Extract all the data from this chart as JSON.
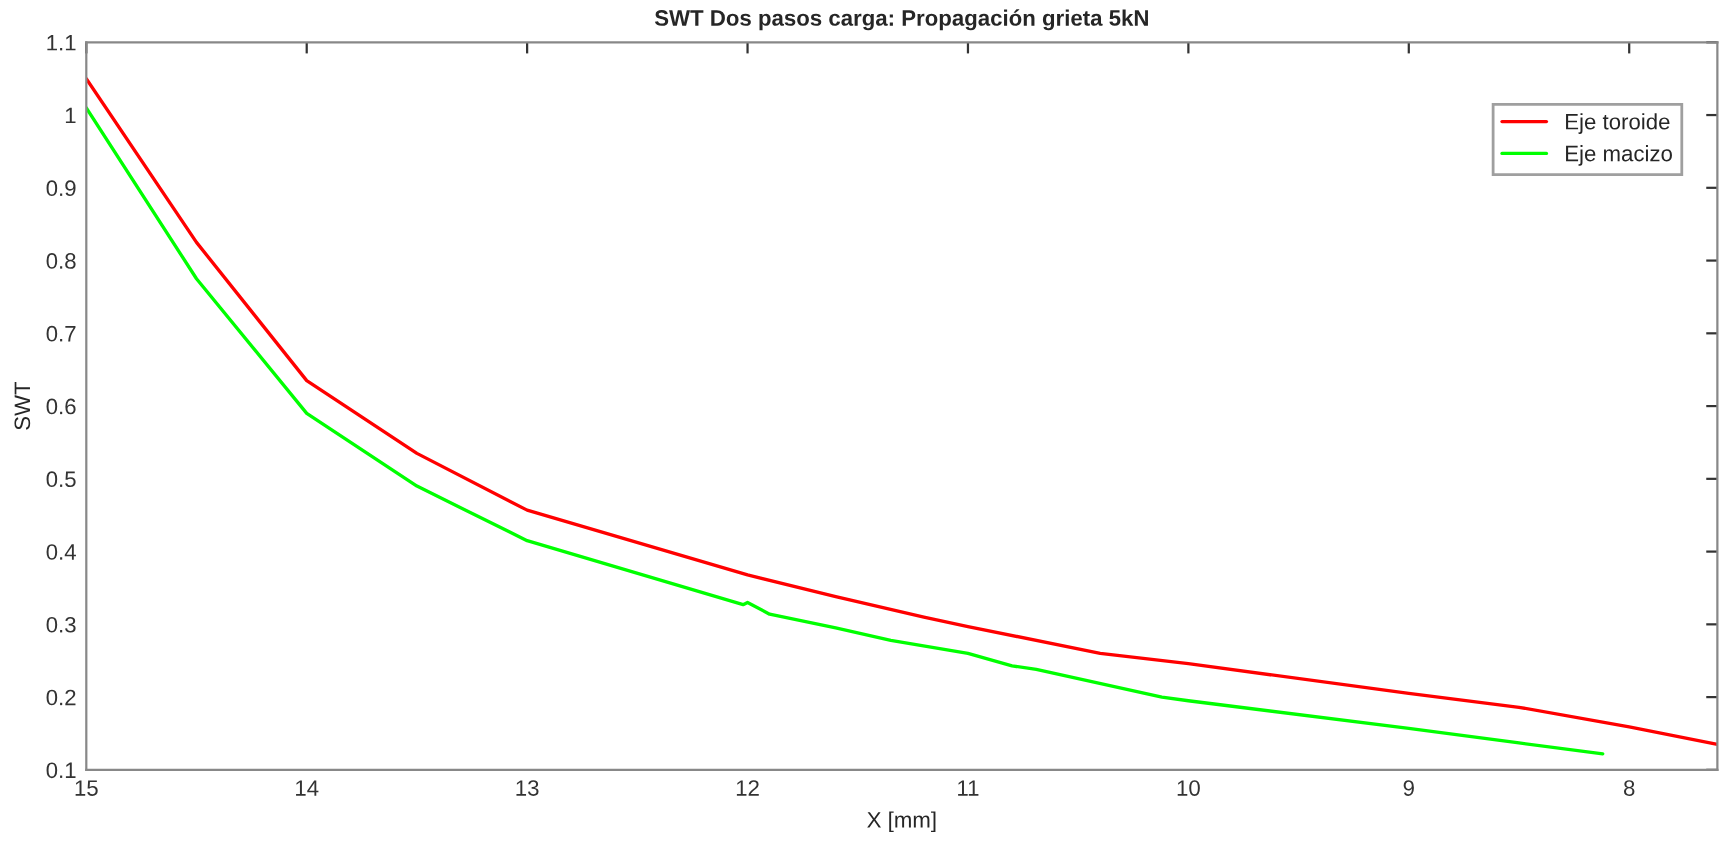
{
  "chart_data": {
    "type": "line",
    "title": "SWT Dos pasos carga: Propagación grieta 5kN",
    "xlabel": "X [mm]",
    "ylabel": "SWT",
    "xlim": [
      15,
      7.6
    ],
    "xticks": [
      15,
      14,
      13,
      12,
      11,
      10,
      9,
      8
    ],
    "ylim": [
      0.1,
      1.1
    ],
    "yticks": [
      0.1,
      0.2,
      0.3,
      0.4,
      0.5,
      0.6,
      0.7,
      0.8,
      0.9,
      1,
      1.1
    ],
    "grid": false,
    "legend": "top right",
    "series": [
      {
        "name": "Eje toroide",
        "color": "#ff0000",
        "x": [
          15,
          14.5,
          14,
          13.5,
          13,
          12,
          11.6,
          11.2,
          11,
          10.4,
          10,
          9,
          8.5,
          8,
          7.6
        ],
        "values": [
          1.05,
          0.825,
          0.635,
          0.535,
          0.457,
          0.368,
          0.338,
          0.31,
          0.297,
          0.26,
          0.246,
          0.205,
          0.186,
          0.159,
          0.135
        ]
      },
      {
        "name": "Eje macizo",
        "color": "#00ff00",
        "x": [
          15,
          14.5,
          14,
          13.5,
          13,
          12.02,
          12,
          11.9,
          11.6,
          11.35,
          11,
          10.8,
          10.69,
          10.12,
          10,
          9,
          8.5,
          8.12
        ],
        "values": [
          1.01,
          0.775,
          0.59,
          0.49,
          0.415,
          0.327,
          0.33,
          0.314,
          0.295,
          0.278,
          0.26,
          0.243,
          0.238,
          0.2,
          0.195,
          0.157,
          0.137,
          0.122
        ]
      }
    ]
  }
}
